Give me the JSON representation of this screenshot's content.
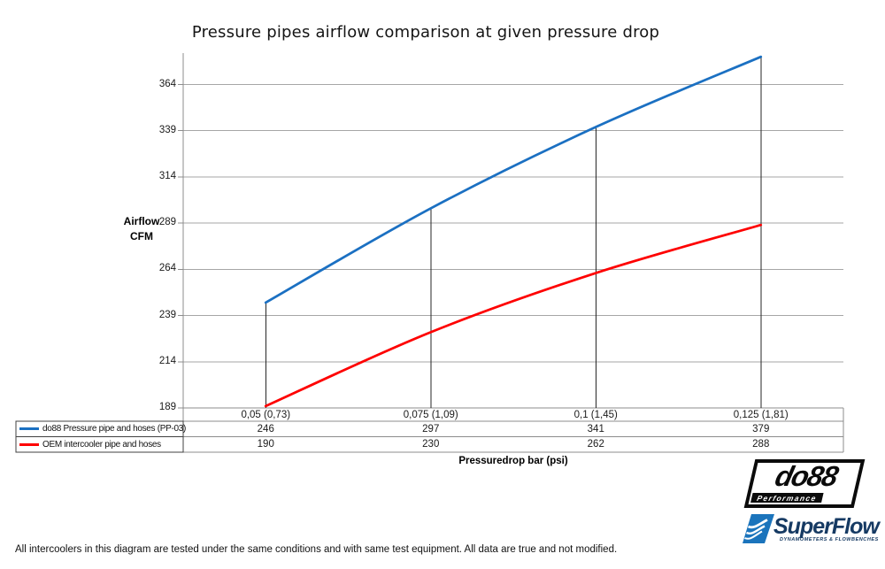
{
  "title": "Pressure pipes airflow comparison at given pressure drop",
  "chart_data": {
    "type": "line",
    "title": "Pressure pipes airflow comparison at given pressure drop",
    "categories": [
      "0,05 (0,73)",
      "0,075 (1,09)",
      "0,1 (1,45)",
      "0,125 (1,81)"
    ],
    "series": [
      {
        "name": "do88 Pressure pipe and hoses (PP-03)",
        "values": [
          246,
          297,
          341,
          379
        ],
        "color": "#1b70c2"
      },
      {
        "name": "OEM intercooler pipe and hoses",
        "values": [
          190,
          230,
          262,
          288
        ],
        "color": "#fe0000"
      }
    ],
    "xlabel": "Pressuredrop bar (psi)",
    "ylabel": "Airflow\nCFM",
    "yticks": [
      189,
      214,
      239,
      264,
      289,
      314,
      339,
      364
    ],
    "ylim": [
      189,
      381
    ],
    "grid": true,
    "smooth": true,
    "drop_lines": true,
    "legend_position": "table-left"
  },
  "footer": {
    "note": "All intercoolers in this diagram are tested under the same conditions and with same test equipment. All data are true and not modified."
  },
  "logos": {
    "do88": {
      "name": "do88",
      "tagline": "Performance"
    },
    "superflow": {
      "name": "SuperFlow",
      "tagline": "DYNAMOMETERS & FLOWBENCHES"
    }
  },
  "colors": {
    "series_blue": "#1b70c2",
    "series_red": "#fe0000",
    "gridline": "#a6a6a6",
    "axis": "#8c8c8c",
    "drop_line": "#262626",
    "table_border": "#8c8c8c",
    "legend_border": "#404040"
  }
}
